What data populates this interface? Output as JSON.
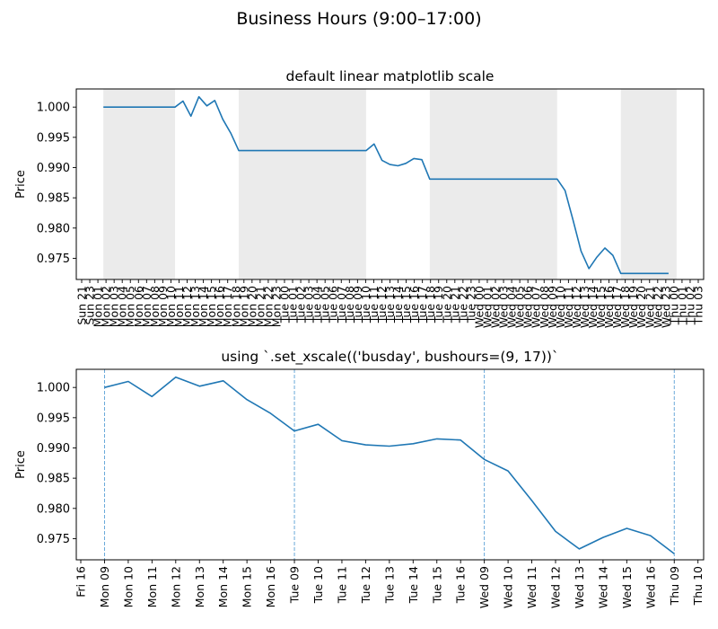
{
  "figure": {
    "suptitle": "Business Hours (9:00–17:00)"
  },
  "colors": {
    "line": "#1f77b4",
    "shade": "#ebebeb",
    "vline": "#5aa0d6"
  },
  "chart_data": [
    {
      "type": "line",
      "title": "default linear matplotlib scale",
      "xlabel": "",
      "ylabel": "Price",
      "ylim": [
        0.9715,
        1.003
      ],
      "yticks": [
        1.0,
        0.995,
        0.99,
        0.985,
        0.98,
        0.975
      ],
      "ytick_labels": [
        "1.000",
        "0.995",
        "0.990",
        "0.985",
        "0.980",
        "0.975"
      ],
      "grid": false,
      "legend": null,
      "xtick_labels": [
        "Sun 21",
        "Sun 23",
        "Mon 01",
        "Mon 02",
        "Mon 03",
        "Mon 04",
        "Mon 05",
        "Mon 06",
        "Mon 07",
        "Mon 08",
        "Mon 09",
        "Mon 10",
        "Mon 11",
        "Mon 12",
        "Mon 13",
        "Mon 14",
        "Mon 15",
        "Mon 16",
        "Mon 17",
        "Mon 18",
        "Mon 19",
        "Mon 20",
        "Mon 21",
        "Mon 22",
        "Mon 23",
        "Tue 00",
        "Tue 01",
        "Tue 02",
        "Tue 03",
        "Tue 04",
        "Tue 05",
        "Tue 06",
        "Tue 07",
        "Tue 08",
        "Tue 09",
        "Tue 10",
        "Tue 11",
        "Tue 12",
        "Tue 13",
        "Tue 14",
        "Tue 15",
        "Tue 16",
        "Tue 17",
        "Tue 18",
        "Tue 19",
        "Tue 20",
        "Tue 21",
        "Tue 22",
        "Tue 23",
        "Wed 00",
        "Wed 01",
        "Wed 02",
        "Wed 03",
        "Wed 04",
        "Wed 05",
        "Wed 06",
        "Wed 07",
        "Wed 08",
        "Wed 09",
        "Wed 10",
        "Wed 11",
        "Wed 12",
        "Wed 13",
        "Wed 14",
        "Wed 15",
        "Wed 16",
        "Wed 17",
        "Wed 18",
        "Wed 19",
        "Wed 20",
        "Wed 21",
        "Wed 22",
        "Wed 23",
        "Thu 00",
        "Thu 01",
        "Thu 02",
        "Thu 03"
      ],
      "shaded_spans_note": "off-hours shaded gray",
      "shaded_spans": [
        [
          "Mon 00",
          "Mon 09"
        ],
        [
          "Mon 17",
          "Tue 09"
        ],
        [
          "Tue 17",
          "Wed 09"
        ],
        [
          "Wed 17",
          "Thu 00"
        ]
      ],
      "x": [
        "Mon 00",
        "Mon 09",
        "Mon 10",
        "Mon 11",
        "Mon 12",
        "Mon 13",
        "Mon 14",
        "Mon 15",
        "Mon 16",
        "Mon 17",
        "Tue 09",
        "Tue 10",
        "Tue 11",
        "Tue 12",
        "Tue 13",
        "Tue 14",
        "Tue 15",
        "Tue 16",
        "Tue 17",
        "Wed 09",
        "Wed 10",
        "Wed 11",
        "Wed 12",
        "Wed 13",
        "Wed 14",
        "Wed 15",
        "Wed 16",
        "Wed 17",
        "Wed 23"
      ],
      "values": [
        1.0,
        1.0,
        1.001,
        0.9985,
        1.0017,
        1.0002,
        1.0011,
        0.998,
        0.9957,
        0.9928,
        0.9928,
        0.9939,
        0.9912,
        0.9905,
        0.9903,
        0.9907,
        0.9915,
        0.9913,
        0.9881,
        0.9881,
        0.9862,
        0.9813,
        0.9762,
        0.9733,
        0.9752,
        0.9767,
        0.9755,
        0.9725,
        0.9725
      ]
    },
    {
      "type": "line",
      "title": "using `.set_xscale(('busday', bushours=(9, 17))`",
      "xlabel": "",
      "ylabel": "Price",
      "ylim": [
        0.9715,
        1.003
      ],
      "yticks": [
        1.0,
        0.995,
        0.99,
        0.985,
        0.98,
        0.975
      ],
      "ytick_labels": [
        "1.000",
        "0.995",
        "0.990",
        "0.985",
        "0.980",
        "0.975"
      ],
      "grid": false,
      "legend": null,
      "xtick_labels": [
        "Fri 16",
        "Mon 09",
        "Mon 10",
        "Mon 11",
        "Mon 12",
        "Mon 13",
        "Mon 14",
        "Mon 15",
        "Mon 16",
        "Tue 09",
        "Tue 10",
        "Tue 11",
        "Tue 12",
        "Tue 13",
        "Tue 14",
        "Tue 15",
        "Tue 16",
        "Wed 09",
        "Wed 10",
        "Wed 11",
        "Wed 12",
        "Wed 13",
        "Wed 14",
        "Wed 15",
        "Wed 16",
        "Thu 09",
        "Thu 10"
      ],
      "day_boundaries_dashed": [
        "Mon 09",
        "Tue 09",
        "Wed 09",
        "Thu 09"
      ],
      "x": [
        "Mon 09",
        "Mon 10",
        "Mon 11",
        "Mon 12",
        "Mon 13",
        "Mon 14",
        "Mon 15",
        "Mon 16",
        "Tue 09",
        "Tue 10",
        "Tue 11",
        "Tue 12",
        "Tue 13",
        "Tue 14",
        "Tue 15",
        "Tue 16",
        "Wed 09",
        "Wed 10",
        "Wed 11",
        "Wed 12",
        "Wed 13",
        "Wed 14",
        "Wed 15",
        "Wed 16",
        "Thu 09"
      ],
      "values": [
        1.0,
        1.001,
        0.9985,
        1.0017,
        1.0002,
        1.0011,
        0.998,
        0.9957,
        0.9928,
        0.9939,
        0.9912,
        0.9905,
        0.9903,
        0.9907,
        0.9915,
        0.9913,
        0.9881,
        0.9862,
        0.9813,
        0.9762,
        0.9733,
        0.9752,
        0.9767,
        0.9755,
        0.9725
      ]
    }
  ]
}
